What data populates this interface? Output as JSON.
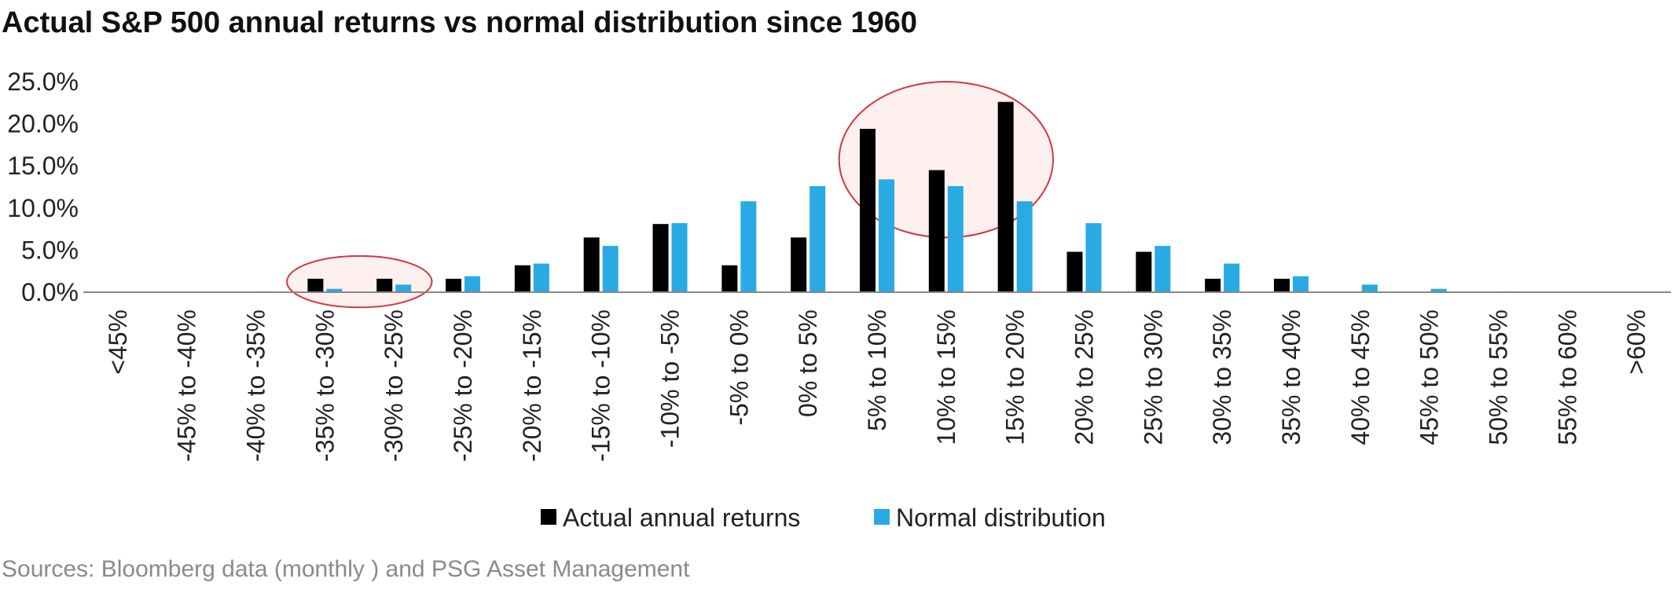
{
  "chart_data": {
    "type": "bar",
    "title": "Actual S&P 500 annual returns vs normal distribution since 1960",
    "source": "Sources: Bloomberg data (monthly ) and PSG Asset Management",
    "xlabel": "",
    "ylabel": "",
    "ylim": [
      0,
      25
    ],
    "yticks": [
      "0.0%",
      "5.0%",
      "10.0%",
      "15.0%",
      "20.0%",
      "25.0%"
    ],
    "grid": false,
    "legend_position": "bottom",
    "categories": [
      "<45%",
      "-45% to -40%",
      "-40% to -35%",
      "-35% to -30%",
      "-30% to -25%",
      "-25% to -20%",
      "-20% to -15%",
      "-15% to -10%",
      "-10% to -5%",
      "-5% to 0%",
      "0% to 5%",
      "5% to 10%",
      "10% to 15%",
      "15% to 20%",
      "20% to 25%",
      "25% to 30%",
      "30% to 35%",
      "35% to 40%",
      "40% to 45%",
      "45% to 50%",
      "50% to 55%",
      "55% to 60%",
      ">60%"
    ],
    "series": [
      {
        "name": "Actual annual returns",
        "color": "#000000",
        "values": [
          0,
          0,
          0,
          1.6,
          1.6,
          1.6,
          3.2,
          6.5,
          8.1,
          3.2,
          6.5,
          19.4,
          14.5,
          22.6,
          4.8,
          4.8,
          1.6,
          1.6,
          0,
          0,
          0,
          0,
          0
        ]
      },
      {
        "name": "Normal distribution",
        "color": "#29aae2",
        "values": [
          0,
          0,
          0.1,
          0.4,
          0.9,
          1.9,
          3.4,
          5.5,
          8.2,
          10.8,
          12.6,
          13.4,
          12.6,
          10.8,
          8.2,
          5.5,
          3.4,
          1.9,
          0.9,
          0.4,
          0.1,
          0,
          0
        ]
      }
    ],
    "annotations": [
      {
        "type": "ellipse",
        "color": "#d0393c",
        "fill": "#fce8e6",
        "from_category": "-35% to -30%",
        "to_category": "-30% to -25%",
        "y_from": -1.8,
        "y_to": 4.3
      },
      {
        "type": "ellipse",
        "color": "#d0393c",
        "fill": "#fce8e6",
        "from_category": "5% to 10%",
        "to_category": "15% to 20%",
        "y_from": 6.5,
        "y_to": 25
      }
    ]
  }
}
